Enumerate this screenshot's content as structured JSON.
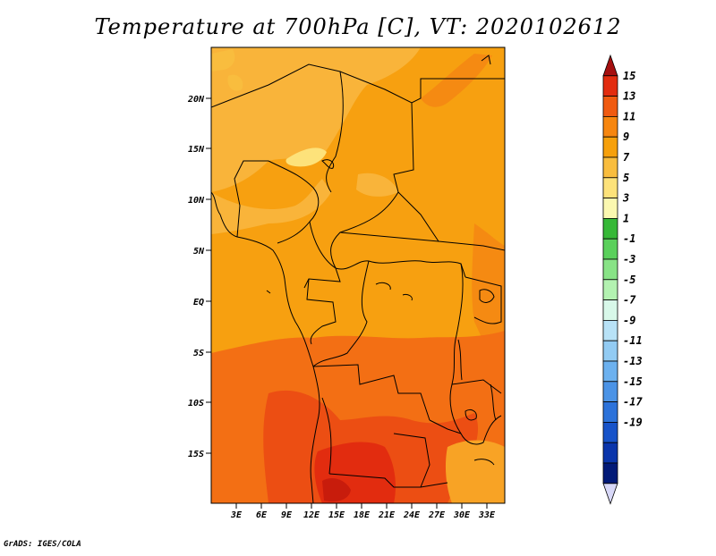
{
  "title": "Temperature at 700hPa [C], VT: 2020102612",
  "credit": "GrADS: IGES/COLA",
  "map": {
    "lat_labels": [
      "20N",
      "15N",
      "10N",
      "5N",
      "EQ",
      "5S",
      "10S",
      "15S"
    ],
    "lon_labels": [
      "3E",
      "6E",
      "9E",
      "12E",
      "15E",
      "18E",
      "21E",
      "24E",
      "27E",
      "30E",
      "33E"
    ]
  },
  "colorbar": {
    "labels": [
      "15",
      "13",
      "11",
      "9",
      "7",
      "5",
      "3",
      "1",
      "-1",
      "-3",
      "-5",
      "-7",
      "-9",
      "-11",
      "-13",
      "-15",
      "-17",
      "-19"
    ],
    "colors": [
      "#a50f0f",
      "#e22c0f",
      "#f05a10",
      "#f7860f",
      "#f6a00c",
      "#f9bd3e",
      "#fde27a",
      "#fbf8b0",
      "#36b837",
      "#5ad05b",
      "#88e386",
      "#b3f2b1",
      "#d8f8e9",
      "#b8e2f7",
      "#92cbf3",
      "#6cb1ef",
      "#4b93e6",
      "#2c72da",
      "#1753c9",
      "#0a35ab",
      "#021a78",
      "#d8d8f8"
    ]
  }
}
